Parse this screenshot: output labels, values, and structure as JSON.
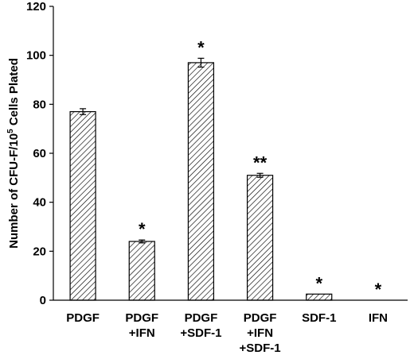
{
  "chart_data": {
    "type": "bar",
    "ylabel_parts": [
      "Number of CFU-F/10",
      "5",
      " Cells Plated"
    ],
    "ylim": [
      0,
      120
    ],
    "yticks": [
      0,
      20,
      40,
      60,
      80,
      100,
      120
    ],
    "categories": [
      [
        "PDGF"
      ],
      [
        "PDGF",
        "+IFN"
      ],
      [
        "PDGF",
        "+SDF-1"
      ],
      [
        "PDGF",
        "+IFN",
        "+SDF-1"
      ],
      [
        "SDF-1"
      ],
      [
        "IFN"
      ]
    ],
    "values": [
      77,
      24,
      97,
      51,
      2.5,
      0
    ],
    "errors": [
      1.2,
      0.6,
      1.8,
      0.8,
      0,
      0
    ],
    "annotations": [
      "",
      "*",
      "*",
      "**",
      "*",
      "*"
    ],
    "grid": false,
    "bar_fill": "diagonal-hatch",
    "bar_color": "#000000"
  }
}
